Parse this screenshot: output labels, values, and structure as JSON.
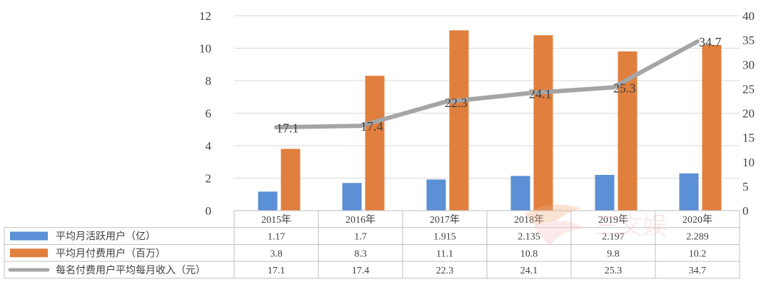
{
  "chart_data": {
    "type": "bar",
    "categories": [
      "2015年",
      "2016年",
      "2017年",
      "2018年",
      "2019年",
      "2020年"
    ],
    "series": [
      {
        "name": "平均月活跃用户（亿）",
        "type": "bar",
        "axis": "left",
        "color": "#5b8fd6",
        "values": [
          1.17,
          1.7,
          1.915,
          2.135,
          2.197,
          2.289
        ],
        "table_labels": [
          "1.17",
          "1.7",
          "1.915",
          "2.135",
          "2.197",
          "2.289"
        ]
      },
      {
        "name": "平均月付费用户（百万）",
        "type": "bar",
        "axis": "left",
        "color": "#e07f3e",
        "values": [
          3.8,
          8.3,
          11.1,
          10.8,
          9.8,
          10.2
        ],
        "table_labels": [
          "3.8",
          "8.3",
          "11.1",
          "10.8",
          "9.8",
          "10.2"
        ]
      },
      {
        "name": "每名付费用户平均每月收入（元）",
        "type": "line",
        "axis": "right",
        "color": "#a5a5a5",
        "values": [
          17.1,
          17.4,
          22.3,
          24.1,
          25.3,
          34.7
        ],
        "table_labels": [
          "17.1",
          "17.4",
          "22.3",
          "24.1",
          "25.3",
          "34.7"
        ],
        "data_labels": [
          "17.1",
          "17.4",
          "22.3",
          "24.1",
          "25.3",
          "34.7"
        ]
      }
    ],
    "y_left": {
      "min": 0,
      "max": 12,
      "step": 2,
      "ticks": [
        "0",
        "2",
        "4",
        "6",
        "8",
        "10",
        "12"
      ]
    },
    "y_right": {
      "min": 0,
      "max": 40,
      "step": 5,
      "ticks": [
        "0",
        "5",
        "10",
        "15",
        "20",
        "25",
        "30",
        "35",
        "40"
      ]
    },
    "grid": true,
    "data_table": true
  },
  "watermark": {
    "text": "三文娱"
  }
}
